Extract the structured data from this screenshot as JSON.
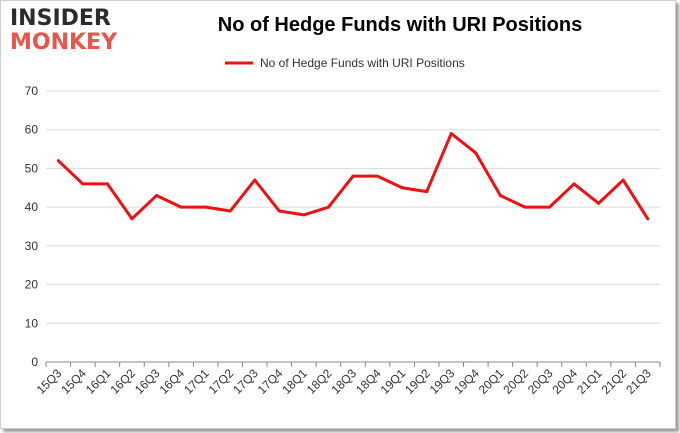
{
  "logo": {
    "line1": "INSIDER",
    "line2": "MONKEY"
  },
  "colors": {
    "series": "#ee1111",
    "grid": "#d9d9d9",
    "axis": "#888888"
  },
  "chart_data": {
    "type": "line",
    "title": "No of Hedge Funds with URI Positions",
    "legend_position": "top-center",
    "grid": true,
    "ylim": [
      0,
      70
    ],
    "yticks": [
      0,
      10,
      20,
      30,
      40,
      50,
      60,
      70
    ],
    "categories": [
      "15Q3",
      "15Q4",
      "16Q1",
      "16Q2",
      "16Q3",
      "16Q4",
      "17Q1",
      "17Q2",
      "17Q3",
      "17Q4",
      "18Q1",
      "18Q2",
      "18Q3",
      "18Q4",
      "19Q1",
      "19Q2",
      "19Q3",
      "19Q4",
      "20Q1",
      "20Q2",
      "20Q3",
      "20Q4",
      "21Q1",
      "21Q2",
      "21Q3"
    ],
    "series": [
      {
        "name": "No of Hedge Funds with URI Positions",
        "values": [
          52,
          46,
          46,
          37,
          43,
          40,
          40,
          39,
          47,
          39,
          38,
          40,
          48,
          48,
          45,
          44,
          59,
          54,
          43,
          40,
          40,
          46,
          41,
          47,
          37
        ]
      }
    ]
  }
}
